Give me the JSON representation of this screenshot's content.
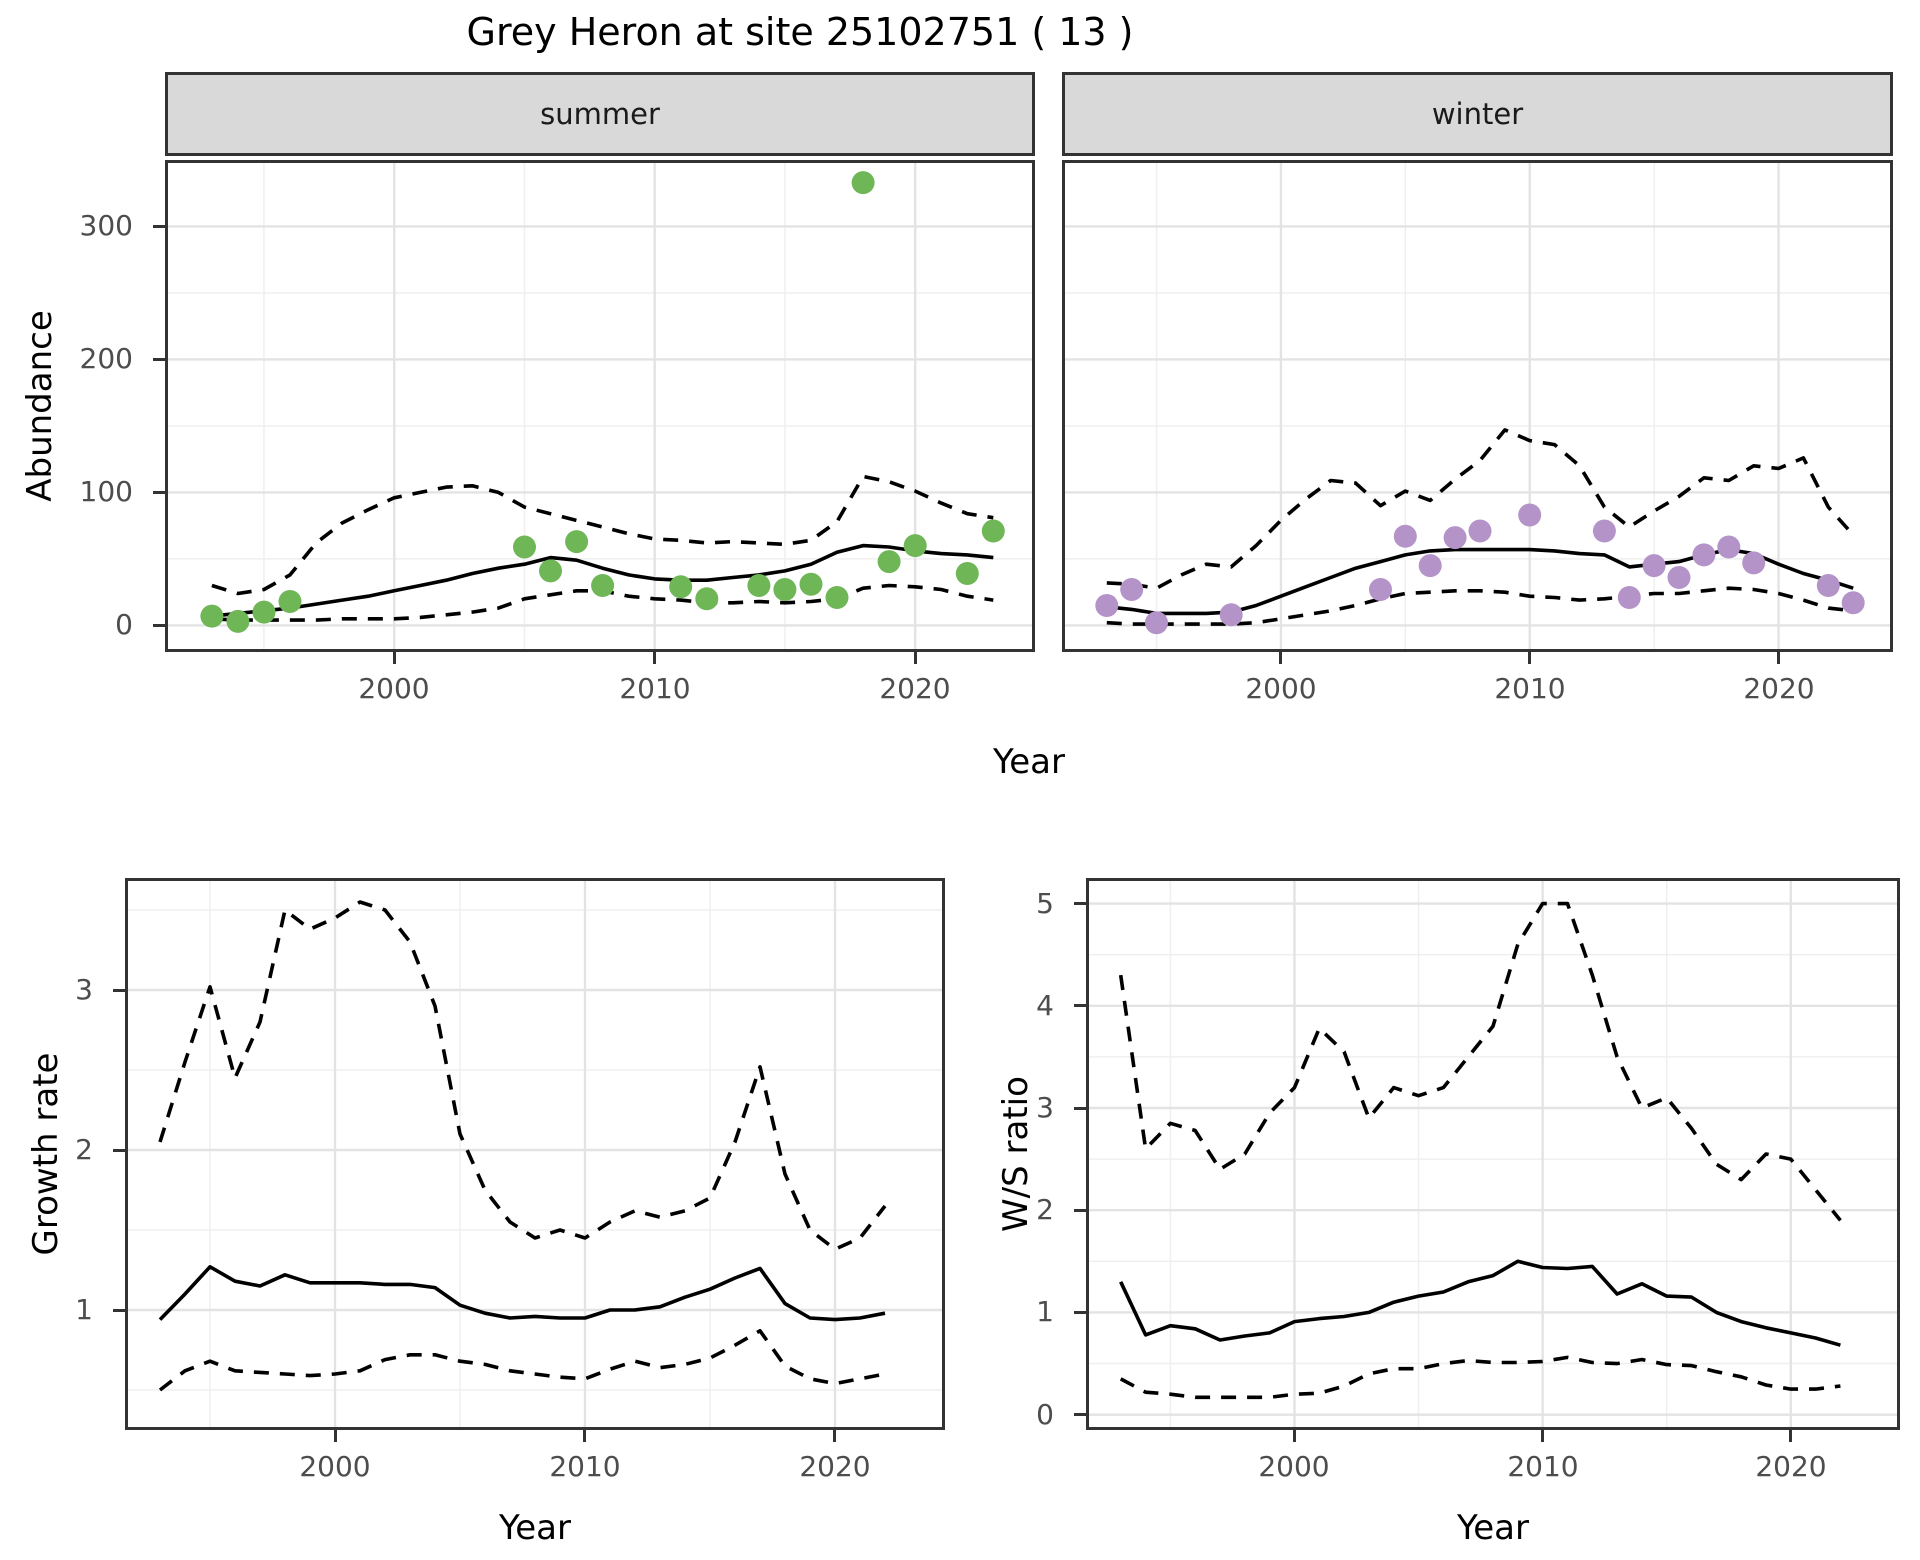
{
  "title": "Grey Heron at site 25102751 ( 13 )",
  "labels": {
    "abundance": "Abundance",
    "year": "Year",
    "growth_rate": "Growth rate",
    "ws_ratio": "W/S ratio"
  },
  "facets": {
    "summer": "summer",
    "winter": "winter"
  },
  "colors": {
    "summer_point": "#6fb657",
    "winter_point": "#b493c8",
    "line": "#000000",
    "strip_bg": "#d9d9d9",
    "panel_border": "#333333",
    "grid_major": "#e3e3e3",
    "grid_minor": "#efefef",
    "tick_label": "#4d4d4d"
  },
  "chart_data": [
    {
      "id": "summer",
      "type": "scatter+line",
      "facet_label": "summer",
      "xlabel": "Year",
      "ylabel": "Abundance",
      "xlim": [
        1991.2,
        2024.6
      ],
      "ylim": [
        -20,
        350
      ],
      "xticks": [
        2000,
        2010,
        2020
      ],
      "xminor": [
        1995,
        2005,
        2015
      ],
      "yticks": [
        0,
        100,
        200,
        300
      ],
      "yminor": [
        50,
        150,
        250
      ],
      "show_ylabels": true,
      "years": [
        1993,
        1994,
        1995,
        1996,
        1997,
        1998,
        1999,
        2000,
        2001,
        2002,
        2003,
        2004,
        2005,
        2006,
        2007,
        2008,
        2009,
        2010,
        2011,
        2012,
        2013,
        2014,
        2015,
        2016,
        2017,
        2018,
        2019,
        2020,
        2021,
        2022,
        2023
      ],
      "fit": [
        7,
        9,
        11,
        13,
        16,
        19,
        22,
        26,
        30,
        34,
        39,
        43,
        46,
        51,
        49,
        43,
        38,
        35,
        34,
        34,
        36,
        38,
        41,
        46,
        55,
        60,
        59,
        56,
        54,
        53,
        51
      ],
      "upper": [
        30,
        24,
        27,
        38,
        62,
        77,
        87,
        96,
        100,
        104,
        105,
        100,
        89,
        84,
        79,
        74,
        69,
        65,
        64,
        62,
        63,
        62,
        61,
        64,
        78,
        112,
        108,
        101,
        92,
        84,
        81
      ],
      "lower": [
        5,
        4,
        4,
        4,
        4,
        5,
        5,
        5,
        6,
        8,
        10,
        13,
        20,
        23,
        26,
        26,
        22,
        20,
        19,
        17,
        17,
        18,
        17,
        18,
        20,
        28,
        30,
        29,
        27,
        22,
        19
      ],
      "points_x": [
        1993,
        1994,
        1995,
        1996,
        2005,
        2006,
        2007,
        2008,
        2011,
        2012,
        2014,
        2015,
        2016,
        2017,
        2018,
        2019,
        2020,
        2022,
        2023
      ],
      "points_y": [
        7,
        3,
        10,
        18,
        59,
        41,
        63,
        30,
        29,
        20,
        30,
        27,
        31,
        21,
        333,
        48,
        60,
        39,
        71
      ],
      "point_color": "#6fb657"
    },
    {
      "id": "winter",
      "type": "scatter+line",
      "facet_label": "winter",
      "xlabel": "Year",
      "ylabel": "Abundance",
      "xlim": [
        1991.2,
        2024.6
      ],
      "ylim": [
        -20,
        350
      ],
      "xticks": [
        2000,
        2010,
        2020
      ],
      "xminor": [
        1995,
        2005,
        2015
      ],
      "yticks": [
        0,
        100,
        200,
        300
      ],
      "yminor": [
        50,
        150,
        250
      ],
      "show_ylabels": false,
      "years": [
        1993,
        1994,
        1995,
        1996,
        1997,
        1998,
        1999,
        2000,
        2001,
        2002,
        2003,
        2004,
        2005,
        2006,
        2007,
        2008,
        2009,
        2010,
        2011,
        2012,
        2013,
        2014,
        2015,
        2016,
        2017,
        2018,
        2019,
        2020,
        2021,
        2022,
        2023
      ],
      "fit": [
        14,
        12,
        9,
        9,
        9,
        10,
        15,
        22,
        29,
        36,
        43,
        48,
        53,
        56,
        57,
        57,
        57,
        57,
        56,
        54,
        53,
        44,
        46,
        48,
        53,
        57,
        54,
        46,
        39,
        34,
        28
      ],
      "upper": [
        32,
        31,
        28,
        38,
        46,
        44,
        60,
        79,
        95,
        109,
        107,
        90,
        101,
        94,
        110,
        124,
        147,
        139,
        136,
        120,
        89,
        74,
        86,
        97,
        111,
        109,
        120,
        118,
        126,
        89,
        68
      ],
      "lower": [
        2,
        1,
        1,
        1,
        1,
        1,
        2,
        5,
        8,
        11,
        15,
        20,
        24,
        25,
        26,
        26,
        25,
        22,
        21,
        19,
        20,
        22,
        24,
        24,
        26,
        28,
        27,
        24,
        19,
        13,
        11
      ],
      "points_x": [
        1993,
        1994,
        1995,
        1998,
        2004,
        2005,
        2006,
        2007,
        2008,
        2010,
        2013,
        2014,
        2015,
        2016,
        2017,
        2018,
        2019,
        2022,
        2023
      ],
      "points_y": [
        15,
        27,
        2,
        8,
        27,
        67,
        45,
        66,
        71,
        83,
        71,
        21,
        45,
        36,
        53,
        59,
        47,
        30,
        17
      ],
      "point_color": "#b493c8"
    },
    {
      "id": "growth",
      "type": "line",
      "facet_label": "",
      "xlabel": "Year",
      "ylabel": "Growth rate",
      "xlim": [
        1991.6,
        2024.4
      ],
      "ylim": [
        0.25,
        3.7
      ],
      "xticks": [
        2000,
        2010,
        2020
      ],
      "xminor": [
        1995,
        2005,
        2015
      ],
      "yticks": [
        1,
        2,
        3
      ],
      "yminor": [
        0.5,
        1.5,
        2.5,
        3.5
      ],
      "show_ylabels": true,
      "years": [
        1993,
        1994,
        1995,
        1996,
        1997,
        1998,
        1999,
        2000,
        2001,
        2002,
        2003,
        2004,
        2005,
        2006,
        2007,
        2008,
        2009,
        2010,
        2011,
        2012,
        2013,
        2014,
        2015,
        2016,
        2017,
        2018,
        2019,
        2020,
        2021,
        2022
      ],
      "fit": [
        0.94,
        1.1,
        1.27,
        1.18,
        1.15,
        1.22,
        1.17,
        1.17,
        1.17,
        1.16,
        1.16,
        1.14,
        1.03,
        0.98,
        0.95,
        0.96,
        0.95,
        0.95,
        1.0,
        1.0,
        1.02,
        1.08,
        1.13,
        1.2,
        1.26,
        1.04,
        0.95,
        0.94,
        0.95,
        0.98
      ],
      "upper": [
        2.05,
        2.55,
        3.02,
        2.45,
        2.8,
        3.5,
        3.38,
        3.45,
        3.55,
        3.5,
        3.3,
        2.9,
        2.1,
        1.75,
        1.55,
        1.45,
        1.5,
        1.45,
        1.55,
        1.62,
        1.58,
        1.62,
        1.7,
        2.05,
        2.52,
        1.85,
        1.5,
        1.38,
        1.45,
        1.65
      ],
      "lower": [
        0.5,
        0.62,
        0.68,
        0.62,
        0.61,
        0.6,
        0.59,
        0.6,
        0.62,
        0.69,
        0.72,
        0.72,
        0.68,
        0.66,
        0.62,
        0.6,
        0.58,
        0.57,
        0.63,
        0.68,
        0.64,
        0.66,
        0.7,
        0.78,
        0.87,
        0.65,
        0.57,
        0.54,
        0.57,
        0.6
      ],
      "points_x": [],
      "points_y": [],
      "point_color": "#000000"
    },
    {
      "id": "ws",
      "type": "line",
      "facet_label": "",
      "xlabel": "Year",
      "ylabel": "W/S ratio",
      "xlim": [
        1991.6,
        2024.4
      ],
      "ylim": [
        -0.15,
        5.25
      ],
      "xticks": [
        2000,
        2010,
        2020
      ],
      "xminor": [
        1995,
        2005,
        2015
      ],
      "yticks": [
        0,
        1,
        2,
        3,
        4,
        5
      ],
      "yminor": [
        0.5,
        1.5,
        2.5,
        3.5,
        4.5
      ],
      "show_ylabels": true,
      "years": [
        1993,
        1994,
        1995,
        1996,
        1997,
        1998,
        1999,
        2000,
        2001,
        2002,
        2003,
        2004,
        2005,
        2006,
        2007,
        2008,
        2009,
        2010,
        2011,
        2012,
        2013,
        2014,
        2015,
        2016,
        2017,
        2018,
        2019,
        2020,
        2021,
        2022
      ],
      "fit": [
        1.3,
        0.78,
        0.87,
        0.84,
        0.73,
        0.77,
        0.8,
        0.91,
        0.94,
        0.96,
        1.0,
        1.1,
        1.16,
        1.2,
        1.3,
        1.36,
        1.5,
        1.44,
        1.43,
        1.45,
        1.18,
        1.28,
        1.16,
        1.15,
        1.0,
        0.91,
        0.85,
        0.8,
        0.75,
        0.68
      ],
      "upper": [
        4.3,
        2.6,
        2.85,
        2.78,
        2.4,
        2.55,
        2.95,
        3.2,
        3.78,
        3.55,
        2.9,
        3.2,
        3.12,
        3.2,
        3.5,
        3.8,
        4.6,
        5.0,
        5.0,
        4.3,
        3.5,
        3.0,
        3.1,
        2.8,
        2.45,
        2.3,
        2.55,
        2.5,
        2.2,
        1.9
      ],
      "lower": [
        0.35,
        0.22,
        0.2,
        0.17,
        0.17,
        0.17,
        0.17,
        0.2,
        0.21,
        0.28,
        0.4,
        0.45,
        0.45,
        0.5,
        0.53,
        0.51,
        0.51,
        0.52,
        0.56,
        0.51,
        0.5,
        0.54,
        0.49,
        0.48,
        0.42,
        0.37,
        0.29,
        0.25,
        0.25,
        0.28
      ],
      "points_x": [],
      "points_y": [],
      "point_color": "#000000"
    }
  ]
}
